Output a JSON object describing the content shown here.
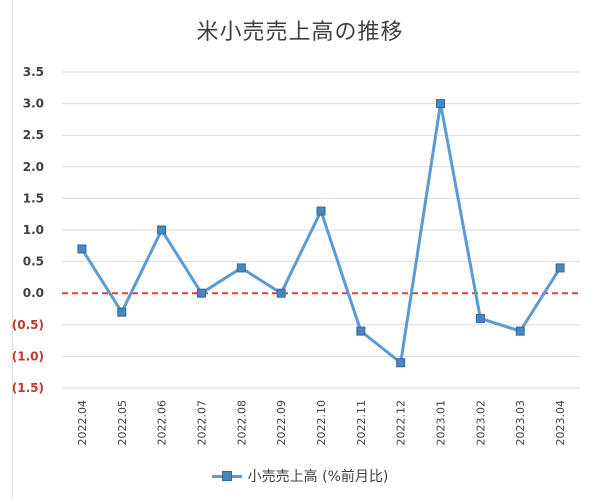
{
  "chart_data": {
    "type": "line",
    "title": "米小売売上高の推移",
    "categories": [
      "2022.04",
      "2022.05",
      "2022.06",
      "2022.07",
      "2022.08",
      "2022.09",
      "2022.10",
      "2022.11",
      "2022.12",
      "2023.01",
      "2023.02",
      "2023.03",
      "2023.04"
    ],
    "series": [
      {
        "name": "小売売上高 (%前月比)",
        "values": [
          0.7,
          -0.3,
          1.0,
          0.0,
          0.4,
          0.0,
          1.3,
          -0.6,
          -1.1,
          3.0,
          -0.4,
          -0.6,
          0.4
        ],
        "color": "#5b9bd5",
        "marker_color": "#4a86c0"
      }
    ],
    "ylim": [
      -1.5,
      3.5
    ],
    "yticks": [
      {
        "value": 3.5,
        "label": "3.5"
      },
      {
        "value": 3.0,
        "label": "3.0"
      },
      {
        "value": 2.5,
        "label": "2.5"
      },
      {
        "value": 2.0,
        "label": "2.0"
      },
      {
        "value": 1.5,
        "label": "1.5"
      },
      {
        "value": 1.0,
        "label": "1.0"
      },
      {
        "value": 0.5,
        "label": "0.5"
      },
      {
        "value": 0.0,
        "label": "0.0"
      },
      {
        "value": -0.5,
        "label": "(0.5)"
      },
      {
        "value": -1.0,
        "label": "(1.0)"
      },
      {
        "value": -1.5,
        "label": "(1.5)"
      }
    ],
    "zero_line": {
      "color": "#e0403a",
      "style": "dashed"
    },
    "grid": true,
    "legend_position": "bottom",
    "colors": {
      "gridline": "#d9d9d9",
      "positive_tick": "#404040",
      "negative_tick": "#c0392b"
    }
  }
}
